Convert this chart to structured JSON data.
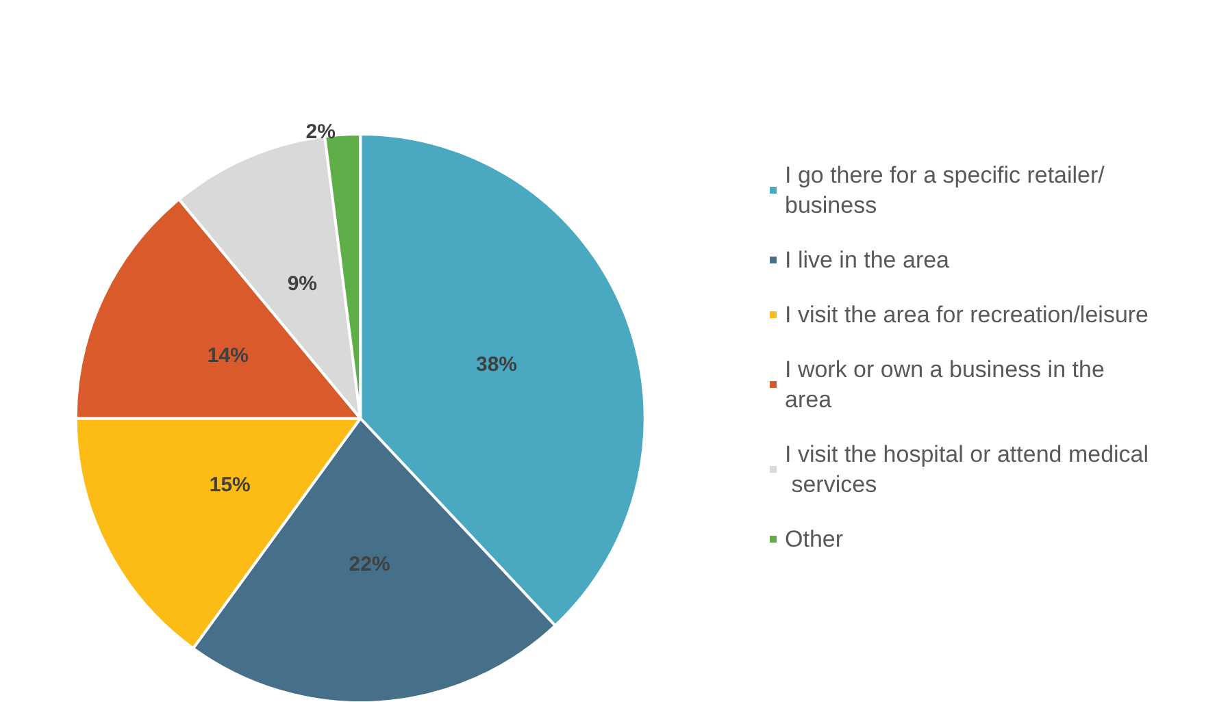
{
  "chart_data": {
    "type": "pie",
    "categories": [
      "I go there for a specific retailer/business",
      "I live in the area",
      "I visit the area for recreation/leisure",
      "I work or own a business in the area",
      "I visit the hospital or attend medical services",
      "Other"
    ],
    "values": [
      38,
      22,
      15,
      14,
      9,
      2
    ],
    "colors": [
      "#4aa9c0",
      "#466f8a",
      "#fdbb16",
      "#d95a2b",
      "#d9d9d9",
      "#5fae4a"
    ],
    "value_labels": [
      "38%",
      "22%",
      "15%",
      "14%",
      "9%",
      "2%"
    ],
    "legend": "right"
  }
}
